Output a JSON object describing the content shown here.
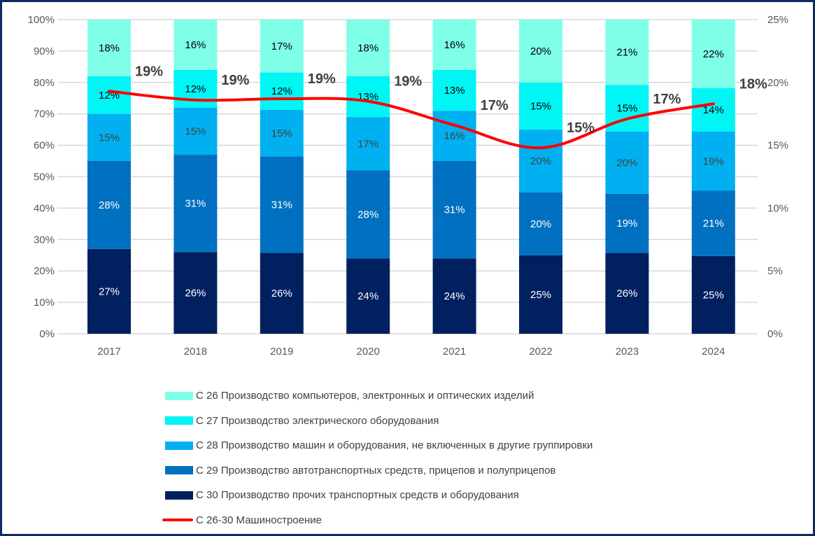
{
  "chart_data": {
    "type": "bar",
    "subtype": "stacked-100-with-line-secondary-axis",
    "title": "",
    "categories": [
      "2017",
      "2018",
      "2019",
      "2020",
      "2021",
      "2022",
      "2023",
      "2024"
    ],
    "y_left": {
      "range": [
        0,
        100
      ],
      "ticks": [
        "0%",
        "10%",
        "20%",
        "30%",
        "40%",
        "50%",
        "60%",
        "70%",
        "80%",
        "90%",
        "100%"
      ]
    },
    "y_right": {
      "range": [
        0,
        25
      ],
      "ticks": [
        "0%",
        "5%",
        "10%",
        "15%",
        "20%",
        "25%"
      ]
    },
    "grid": true,
    "legend_position": "bottom",
    "series": [
      {
        "name": "С 30 Производство прочих транспортных средств и оборудования",
        "color": "#002060",
        "label_color": "#ffffff",
        "values": [
          27,
          26,
          26,
          24,
          24,
          25,
          26,
          25
        ],
        "labels": [
          "27%",
          "26%",
          "26%",
          "24%",
          "24%",
          "25%",
          "26%",
          "25%"
        ]
      },
      {
        "name": "С 29 Производство автотранспортных средств, прицепов и полуприцепов",
        "color": "#0070c0",
        "label_color": "#ffffff",
        "values": [
          28,
          31,
          31,
          28,
          31,
          20,
          19,
          21
        ],
        "labels": [
          "28%",
          "31%",
          "31%",
          "28%",
          "31%",
          "20%",
          "19%",
          "21%"
        ]
      },
      {
        "name": "С 28 Производство машин и оборудования, не включенных в другие группировки",
        "color": "#00b0f0",
        "label_color": "#404040",
        "values": [
          15,
          15,
          15,
          17,
          16,
          20,
          20,
          19
        ],
        "labels": [
          "15%",
          "15%",
          "15%",
          "17%",
          "16%",
          "20%",
          "20%",
          "19%"
        ]
      },
      {
        "name": "С 27 Производство электрического оборудования",
        "color": "#00f5f5",
        "label_color": "#000000",
        "values": [
          12,
          12,
          12,
          13,
          13,
          15,
          15,
          14
        ],
        "labels": [
          "12%",
          "12%",
          "12%",
          "13%",
          "13%",
          "15%",
          "15%",
          "14%"
        ]
      },
      {
        "name": "С 26 Производство компьютеров, электронных и оптических изделий",
        "color": "#80ffe8",
        "label_color": "#000000",
        "values": [
          18,
          16,
          17,
          18,
          16,
          20,
          21,
          22
        ],
        "labels": [
          "18%",
          "16%",
          "17%",
          "18%",
          "16%",
          "20%",
          "21%",
          "22%"
        ]
      }
    ],
    "line": {
      "name": "С 26-30 Машиностроение",
      "color": "#ff0000",
      "axis": "right",
      "values": [
        19.3,
        18.6,
        18.7,
        18.5,
        16.6,
        14.8,
        17.1,
        18.3
      ],
      "labels": [
        "19%",
        "19%",
        "19%",
        "19%",
        "17%",
        "15%",
        "17%",
        "18%"
      ]
    },
    "legend_order": [
      "С 26 Производство компьютеров, электронных и оптических изделий",
      "С 27 Производство электрического оборудования",
      "С 28 Производство машин и оборудования, не включенных в другие группировки",
      "С 29 Производство автотранспортных средств, прицепов и полуприцепов",
      "С 30 Производство прочих транспортных средств и оборудования",
      "С 26-30 Машиностроение"
    ]
  },
  "legend": {
    "items": [
      {
        "label": "С 26 Производство компьютеров, электронных и оптических изделий",
        "color": "#80ffe8",
        "kind": "box"
      },
      {
        "label": "С 27 Производство электрического оборудования",
        "color": "#00f5f5",
        "kind": "box"
      },
      {
        "label": "С 28 Производство машин и оборудования, не включенных в другие группировки",
        "color": "#00b0f0",
        "kind": "box"
      },
      {
        "label": "С 29 Производство автотранспортных средств, прицепов и полуприцепов",
        "color": "#0070c0",
        "kind": "box"
      },
      {
        "label": "С 30 Производство прочих транспортных средств и оборудования",
        "color": "#002060",
        "kind": "box"
      },
      {
        "label": "С 26-30 Машиностроение",
        "color": "#ff0000",
        "kind": "line"
      }
    ]
  }
}
